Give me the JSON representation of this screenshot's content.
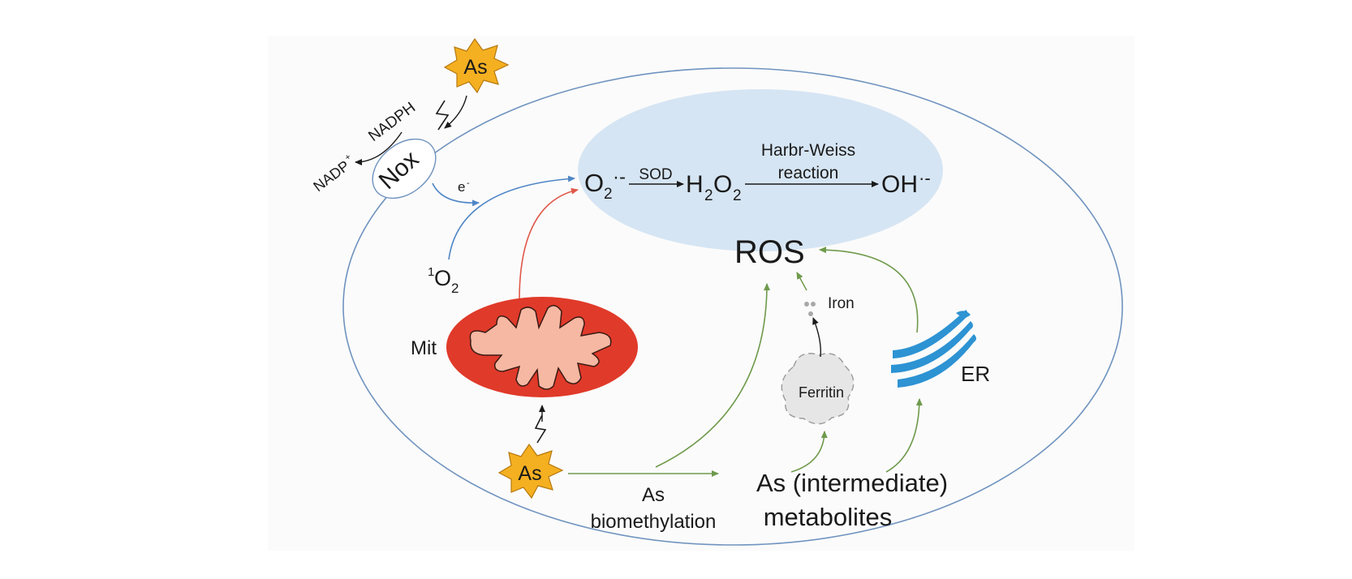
{
  "labels": {
    "as_top": "As",
    "nadph": "NADPH",
    "nadp": "NADP",
    "nadp_sup": "+",
    "nox": "Nox",
    "electron": "e",
    "electron_sup": "-",
    "singlet_o2_sup": "1",
    "singlet_o2_base": "O",
    "singlet_o2_sub": "2",
    "superoxide_base": "O",
    "superoxide_sub": "2",
    "superoxide_radical": "·-",
    "sod": "SOD",
    "h2o2_h": "H",
    "h2o2_sub1": "2",
    "h2o2_o": "O",
    "h2o2_sub2": "2",
    "haber_weiss_line1": "Harbr-Weiss",
    "haber_weiss_line2": "reaction",
    "hydroxyl": "OH",
    "hydroxyl_radical": "·-",
    "ros": "ROS",
    "iron": "Iron",
    "mit": "Mit",
    "ferritin": "Ferritin",
    "er": "ER",
    "as_bottom": "As",
    "biomethylation_line1": "As",
    "biomethylation_line2": "biomethylation",
    "metabolites_line1": "As (intermediate)",
    "metabolites_line2": "metabolites"
  },
  "colors": {
    "arsenic_star": "#f5b021",
    "arsenic_star_outline": "#b5780f",
    "ros_region": "#d6e5f3",
    "cell_outline": "#6f93bf",
    "blue_arrow": "#4f86c6",
    "red_arrow": "#e0584a",
    "green_arrow": "#6f9a4c",
    "mitochondrion_outer": "#e03a2a",
    "mitochondrion_inner": "#f6b8a2",
    "er": "#2d93d3",
    "ferritin": "#e6e6e6"
  }
}
